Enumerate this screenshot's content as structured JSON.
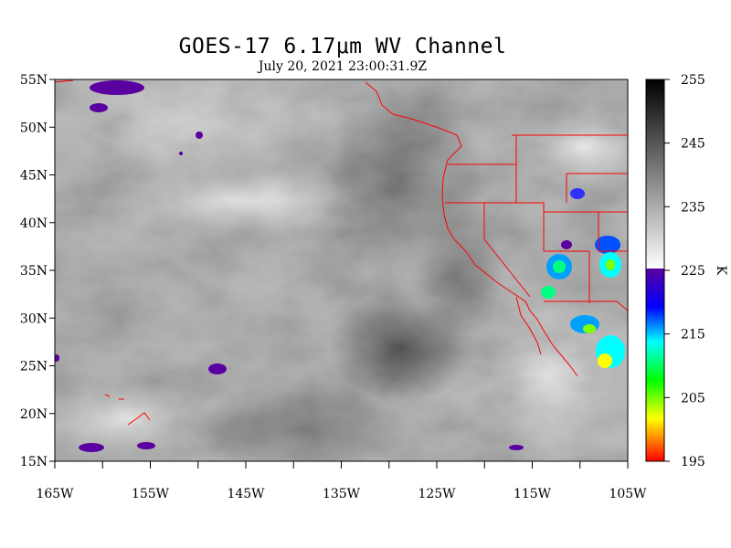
{
  "title": "GOES-17  6.17μm WV Channel",
  "subtitle": "July 20,  2021 23:00:31.9Z",
  "map": {
    "extent": {
      "lon_min": -165,
      "lon_max": -105,
      "lat_min": 15,
      "lat_max": 55
    },
    "lat_labels": [
      "55N",
      "50N",
      "45N",
      "40N",
      "35N",
      "30N",
      "25N",
      "20N",
      "15N"
    ],
    "lat_values": [
      55,
      50,
      45,
      40,
      35,
      30,
      25,
      20,
      15
    ],
    "lon_labels": [
      "165W",
      "155W",
      "145W",
      "135W",
      "125W",
      "115W",
      "105W"
    ],
    "lon_values": [
      -165,
      -155,
      -145,
      -135,
      -125,
      -115,
      -105
    ],
    "border_color": "#ff0000"
  },
  "colorbar": {
    "unit": "K",
    "tick_labels": [
      "255",
      "245",
      "235",
      "225",
      "215",
      "205",
      "195"
    ],
    "tick_values": [
      255,
      245,
      235,
      225,
      215,
      205,
      195
    ],
    "range": [
      195,
      255
    ],
    "gray_range": [
      225,
      255
    ],
    "color_stops": [
      "#ff0000",
      "#ffff00",
      "#00ff00",
      "#00ffff",
      "#0000ff",
      "#5a00a0"
    ]
  }
}
